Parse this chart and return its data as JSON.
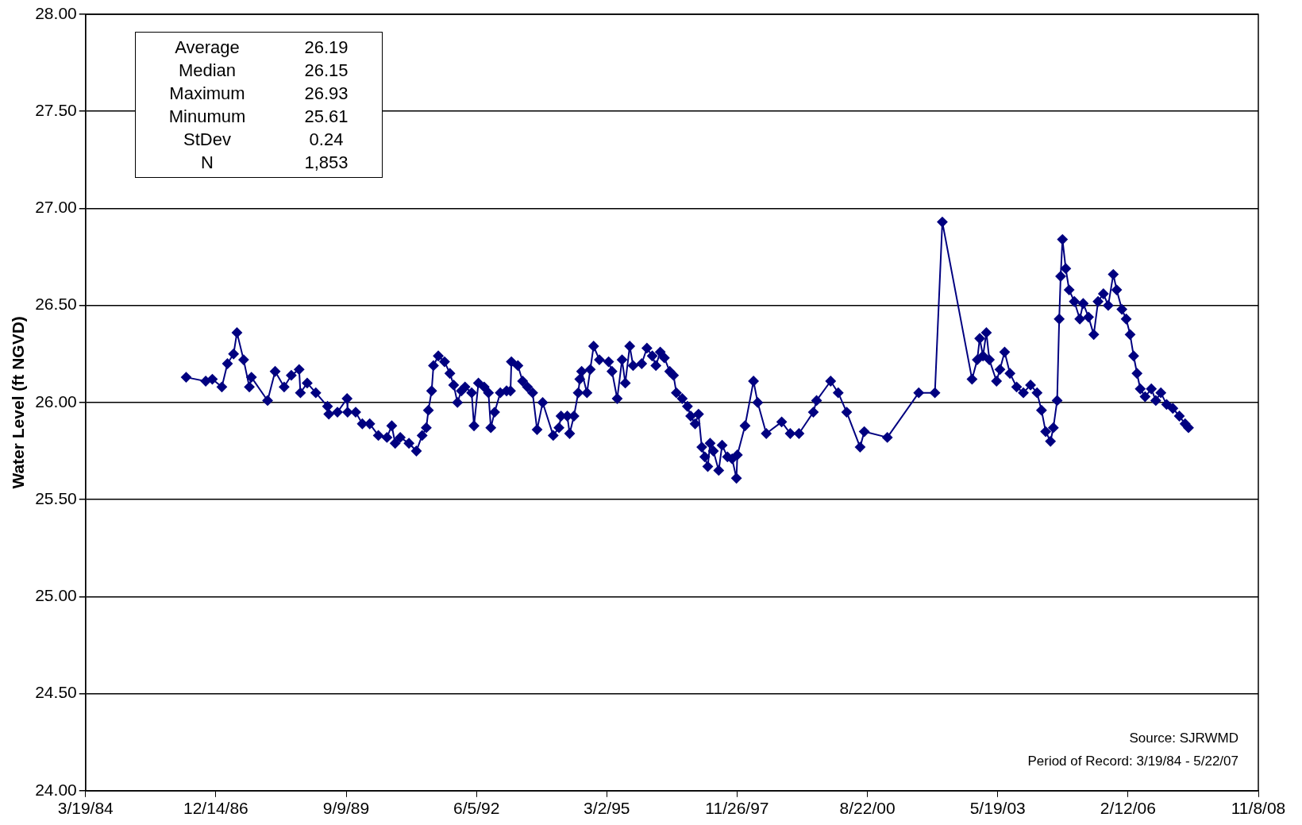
{
  "chart_data": {
    "type": "line",
    "ylabel": "Water Level (ft NGVD)",
    "marker": "diamond",
    "grid": "y",
    "legend": false,
    "xlim": [
      "1984-03-19",
      "2008-11-08"
    ],
    "xticks": [
      {
        "value": "1984-03-19",
        "label": "3/19/84"
      },
      {
        "value": "1986-12-14",
        "label": "12/14/86"
      },
      {
        "value": "1989-09-09",
        "label": "9/9/89"
      },
      {
        "value": "1992-06-05",
        "label": "6/5/92"
      },
      {
        "value": "1995-03-02",
        "label": "3/2/95"
      },
      {
        "value": "1997-11-26",
        "label": "11/26/97"
      },
      {
        "value": "2000-08-22",
        "label": "8/22/00"
      },
      {
        "value": "2003-05-19",
        "label": "5/19/03"
      },
      {
        "value": "2006-02-12",
        "label": "2/12/06"
      },
      {
        "value": "2008-11-08",
        "label": "11/8/08"
      }
    ],
    "ylim": [
      24,
      28
    ],
    "yticks": [
      {
        "value": 24,
        "label": "24.00"
      },
      {
        "value": 24.5,
        "label": "24.50"
      },
      {
        "value": 25,
        "label": "25.00"
      },
      {
        "value": 25.5,
        "label": "25.50"
      },
      {
        "value": 26,
        "label": "26.00"
      },
      {
        "value": 26.5,
        "label": "26.50"
      },
      {
        "value": 27,
        "label": "27.00"
      },
      {
        "value": 27.5,
        "label": "27.50"
      },
      {
        "value": 28,
        "label": "28.00"
      }
    ],
    "annotations": [
      "Average 26.19",
      "Median 26.15",
      "Maximum 26.93",
      "Minumum 25.61",
      "StDev 0.24",
      "N 1,853",
      "Source: SJRWMD",
      "Period of Record: 3/19/84 - 5/22/07"
    ],
    "series": [
      {
        "color": "#000080",
        "x": [
          "1986-04-30",
          "1986-09-27",
          "1986-11-17",
          "1987-01-29",
          "1987-03-13",
          "1987-04-29",
          "1987-05-25",
          "1987-07-15",
          "1987-08-28",
          "1987-09-13",
          "1988-01-15",
          "1988-03-13",
          "1988-05-21",
          "1988-07-15",
          "1988-09-13",
          "1988-09-23",
          "1988-11-14",
          "1989-01-19",
          "1989-04-19",
          "1989-04-29",
          "1989-07-04",
          "1989-09-16",
          "1989-09-20",
          "1989-11-21",
          "1990-01-11",
          "1990-03-09",
          "1990-05-14",
          "1990-07-19",
          "1990-08-25",
          "1990-09-20",
          "1990-10-29",
          "1991-01-04",
          "1991-03-02",
          "1991-04-15",
          "1991-05-17",
          "1991-06-02",
          "1991-06-27",
          "1991-07-11",
          "1991-08-17",
          "1991-10-04",
          "1991-11-14",
          "1991-12-13",
          "1992-01-11",
          "1992-02-10",
          "1992-03-09",
          "1992-04-29",
          "1992-05-17",
          "1992-06-20",
          "1992-08-03",
          "1992-09-05",
          "1992-09-23",
          "1992-10-22",
          "1992-12-05",
          "1993-01-22",
          "1993-02-21",
          "1993-02-28",
          "1993-04-19",
          "1993-05-25",
          "1993-07-01",
          "1993-08-10",
          "1993-09-13",
          "1993-10-26",
          "1994-01-15",
          "1994-02-28",
          "1994-03-16",
          "1994-05-03",
          "1994-05-21",
          "1994-06-23",
          "1994-07-26",
          "1994-08-07",
          "1994-08-21",
          "1994-10-01",
          "1994-10-26",
          "1994-11-21",
          "1995-01-04",
          "1995-03-16",
          "1995-04-11",
          "1995-05-21",
          "1995-06-27",
          "1995-07-22",
          "1995-08-25",
          "1995-09-20",
          "1995-11-25",
          "1996-01-04",
          "1996-02-14",
          "1996-03-13",
          "1996-04-15",
          "1996-05-17",
          "1996-06-27",
          "1996-07-26",
          "1996-08-17",
          "1996-10-01",
          "1996-11-10",
          "1996-12-05",
          "1997-01-08",
          "1997-02-03",
          "1997-02-28",
          "1997-03-23",
          "1997-04-15",
          "1997-05-03",
          "1997-05-28",
          "1997-07-08",
          "1997-08-03",
          "1997-09-13",
          "1997-10-19",
          "1997-11-21",
          "1997-11-28",
          "1998-01-26",
          "1998-04-01",
          "1998-05-03",
          "1998-07-08",
          "1998-11-03",
          "1999-01-08",
          "1999-03-16",
          "1999-07-04",
          "1999-07-29",
          "1999-11-14",
          "2000-01-11",
          "2000-03-16",
          "2000-06-27",
          "2000-07-29",
          "2001-01-22",
          "2001-09-20",
          "2002-01-22",
          "2002-03-20",
          "2002-11-03",
          "2002-12-13",
          "2003-01-01",
          "2003-01-26",
          "2003-02-21",
          "2003-03-16",
          "2003-05-10",
          "2003-06-05",
          "2003-07-11",
          "2003-08-21",
          "2003-10-11",
          "2003-12-02",
          "2004-01-26",
          "2004-03-16",
          "2004-04-19",
          "2004-05-21",
          "2004-06-27",
          "2004-07-19",
          "2004-08-17",
          "2004-09-02",
          "2004-09-13",
          "2004-09-27",
          "2004-10-22",
          "2004-11-17",
          "2004-12-27",
          "2005-02-07",
          "2005-03-05",
          "2005-04-15",
          "2005-05-25",
          "2005-06-27",
          "2005-08-07",
          "2005-09-13",
          "2005-10-22",
          "2005-11-17",
          "2005-12-27",
          "2006-01-29",
          "2006-02-28",
          "2006-03-27",
          "2006-04-22",
          "2006-05-17",
          "2006-06-23",
          "2006-08-10",
          "2006-09-13",
          "2006-10-22",
          "2006-12-05",
          "2007-01-22",
          "2007-03-13",
          "2007-04-26",
          "2007-05-22"
        ],
        "values": [
          26.13,
          26.11,
          26.12,
          26.08,
          26.2,
          26.25,
          26.36,
          26.22,
          26.08,
          26.13,
          26.01,
          26.16,
          26.08,
          26.14,
          26.17,
          26.05,
          26.1,
          26.05,
          25.98,
          25.94,
          25.95,
          26.02,
          25.95,
          25.95,
          25.89,
          25.89,
          25.83,
          25.82,
          25.88,
          25.79,
          25.82,
          25.79,
          25.75,
          25.83,
          25.87,
          25.96,
          26.06,
          26.19,
          26.24,
          26.21,
          26.15,
          26.09,
          26.0,
          26.06,
          26.08,
          26.05,
          25.88,
          26.1,
          26.08,
          26.05,
          25.87,
          25.95,
          26.05,
          26.06,
          26.06,
          26.21,
          26.19,
          26.11,
          26.08,
          26.05,
          25.86,
          26.0,
          25.83,
          25.87,
          25.93,
          25.93,
          25.84,
          25.93,
          26.05,
          26.12,
          26.16,
          26.05,
          26.17,
          26.29,
          26.22,
          26.21,
          26.16,
          26.02,
          26.22,
          26.1,
          26.29,
          26.19,
          26.2,
          26.28,
          26.24,
          26.19,
          26.26,
          26.23,
          26.16,
          26.14,
          26.05,
          26.02,
          25.98,
          25.93,
          25.89,
          25.94,
          25.77,
          25.72,
          25.67,
          25.79,
          25.75,
          25.65,
          25.78,
          25.72,
          25.71,
          25.61,
          25.73,
          25.88,
          26.11,
          26.0,
          25.84,
          25.9,
          25.84,
          25.84,
          25.95,
          26.01,
          26.11,
          26.05,
          25.95,
          25.77,
          25.85,
          25.82,
          26.05,
          26.05,
          26.93,
          26.12,
          26.22,
          26.33,
          26.24,
          26.36,
          26.22,
          26.11,
          26.17,
          26.26,
          26.15,
          26.08,
          26.05,
          26.09,
          26.05,
          25.96,
          25.85,
          25.8,
          25.87,
          26.01,
          26.43,
          26.65,
          26.84,
          26.69,
          26.58,
          26.52,
          26.43,
          26.51,
          26.44,
          26.35,
          26.52,
          26.56,
          26.5,
          26.66,
          26.58,
          26.48,
          26.43,
          26.35,
          26.24,
          26.15,
          26.07,
          26.03,
          26.07,
          26.01,
          26.05,
          25.99,
          25.97,
          25.93,
          25.89,
          25.87
        ]
      }
    ]
  }
}
